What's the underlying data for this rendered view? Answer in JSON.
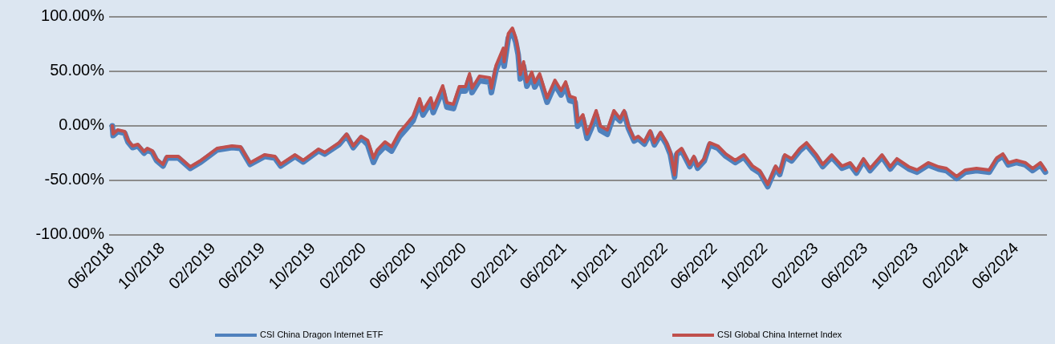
{
  "chart_data": {
    "type": "line",
    "x": [
      "2018-06-01",
      "2018-06-03",
      "2018-06-14",
      "2018-07-01",
      "2018-07-09",
      "2018-07-20",
      "2018-08-02",
      "2018-08-17",
      "2018-08-25",
      "2018-09-06",
      "2018-09-16",
      "2018-10-02",
      "2018-10-11",
      "2018-11-08",
      "2018-12-07",
      "2019-01-02",
      "2019-02-10",
      "2019-03-18",
      "2019-04-08",
      "2019-05-01",
      "2019-06-05",
      "2019-06-30",
      "2019-07-14",
      "2019-08-18",
      "2019-09-07",
      "2019-10-14",
      "2019-10-29",
      "2019-12-03",
      "2019-12-21",
      "2020-01-06",
      "2020-01-25",
      "2020-02-10",
      "2020-02-24",
      "2020-03-04",
      "2020-03-23",
      "2020-04-08",
      "2020-04-27",
      "2020-05-14",
      "2020-05-30",
      "2020-06-15",
      "2020-06-23",
      "2020-07-12",
      "2020-07-18",
      "2020-08-10",
      "2020-08-20",
      "2020-09-05",
      "2020-09-19",
      "2020-10-04",
      "2020-10-14",
      "2020-10-20",
      "2020-11-07",
      "2020-12-02",
      "2020-12-06",
      "2020-12-17",
      "2021-01-04",
      "2021-01-06",
      "2021-01-16",
      "2021-01-26",
      "2021-02-03",
      "2021-02-09",
      "2021-02-14",
      "2021-02-22",
      "2021-03-02",
      "2021-03-14",
      "2021-03-21",
      "2021-04-02",
      "2021-04-20",
      "2021-05-09",
      "2021-05-24",
      "2021-06-04",
      "2021-06-14",
      "2021-06-27",
      "2021-07-03",
      "2021-07-16",
      "2021-07-26",
      "2021-08-05",
      "2021-08-17",
      "2021-08-27",
      "2021-09-13",
      "2021-09-29",
      "2021-10-14",
      "2021-10-24",
      "2021-11-03",
      "2021-11-17",
      "2021-11-27",
      "2021-12-12",
      "2021-12-26",
      "2022-01-05",
      "2022-01-20",
      "2022-02-03",
      "2022-02-13",
      "2022-02-23",
      "2022-02-28",
      "2022-03-12",
      "2022-04-01",
      "2022-04-11",
      "2022-04-20",
      "2022-05-06",
      "2022-05-19",
      "2022-06-08",
      "2022-06-27",
      "2022-07-20",
      "2022-08-10",
      "2022-08-31",
      "2022-09-18",
      "2022-10-07",
      "2022-10-26",
      "2022-11-05",
      "2022-11-17",
      "2022-12-04",
      "2022-12-24",
      "2023-01-09",
      "2023-02-02",
      "2023-02-17",
      "2023-03-11",
      "2023-04-05",
      "2023-04-25",
      "2023-05-10",
      "2023-05-27",
      "2023-06-12",
      "2023-07-11",
      "2023-07-31",
      "2023-08-16",
      "2023-09-14",
      "2023-10-04",
      "2023-10-31",
      "2023-11-25",
      "2023-12-14",
      "2024-01-08",
      "2024-01-29",
      "2024-02-25",
      "2024-03-27",
      "2024-04-14",
      "2024-04-29",
      "2024-05-12",
      "2024-06-01",
      "2024-06-23",
      "2024-07-10",
      "2024-07-29",
      "2024-08-10"
    ],
    "series": [
      {
        "name": "CSI China Dragon Internet ETF",
        "color": "#4f81bd",
        "values": [
          0,
          -8.9,
          -5.2,
          -6.6,
          -14.7,
          -19.9,
          -18.4,
          -25.0,
          -22.1,
          -24.3,
          -31.6,
          -36.8,
          -29.4,
          -29.4,
          -39.0,
          -33.1,
          -22.1,
          -19.9,
          -20.6,
          -35.3,
          -28.0,
          -29.4,
          -36.8,
          -28.0,
          -33.1,
          -22.8,
          -25.8,
          -16.9,
          -8.9,
          -19.9,
          -11.1,
          -17.2,
          -33.4,
          -26.1,
          -18.7,
          -23.1,
          -9.9,
          -2.5,
          4.8,
          21.0,
          10.0,
          21.7,
          12.2,
          32.8,
          17.3,
          15.9,
          32.0,
          32.0,
          43.8,
          30.6,
          41.6,
          40.1,
          30.6,
          51.1,
          67.3,
          54.8,
          80.6,
          85.7,
          76.9,
          65.1,
          43.1,
          54.8,
          36.4,
          45.3,
          35.7,
          43.8,
          21.7,
          37.9,
          28.4,
          36.4,
          23.2,
          21.7,
          -0.3,
          6.3,
          -11.4,
          -2.5,
          10.0,
          -4.0,
          -7.7,
          10.0,
          4.6,
          12.0,
          -2.0,
          -13.8,
          -11.6,
          -16.7,
          -6.4,
          -17.4,
          -7.9,
          -16.7,
          -26.3,
          -46.9,
          -26.3,
          -22.6,
          -37.3,
          -29.9,
          -38.8,
          -32.1,
          -17.4,
          -20.4,
          -27.7,
          -33.6,
          -28.5,
          -38.8,
          -43.2,
          -55.7,
          -38.8,
          -44.6,
          -28.5,
          -32.1,
          -22.6,
          -17.4,
          -28.5,
          -37.3,
          -28.5,
          -38.8,
          -35.8,
          -43.2,
          -32.1,
          -41.0,
          -28.5,
          -39.5,
          -32.1,
          -39.5,
          -42.4,
          -35.8,
          -39.5,
          -41.0,
          -48.3,
          -42.4,
          -41.0,
          -42.4,
          -31.4,
          -27.7,
          -35.8,
          -33.6,
          -35.8,
          -41.0,
          -35.8,
          -42.4
        ]
      },
      {
        "name": "CSI Global China Internet Index",
        "color": "#c0504d",
        "values": [
          0,
          -7.4,
          -3.7,
          -5.1,
          -13.2,
          -18.4,
          -16.9,
          -23.5,
          -20.6,
          -22.8,
          -30.1,
          -35.3,
          -27.9,
          -27.9,
          -37.5,
          -31.6,
          -20.6,
          -18.4,
          -19.1,
          -33.8,
          -26.5,
          -27.9,
          -35.3,
          -26.5,
          -31.6,
          -21.3,
          -24.3,
          -15.4,
          -7.4,
          -18.4,
          -9.6,
          -13.2,
          -29.4,
          -22.1,
          -14.7,
          -19.1,
          -5.9,
          1.5,
          8.8,
          25.0,
          14.0,
          25.7,
          16.2,
          36.8,
          21.3,
          19.9,
          36.0,
          36.0,
          47.8,
          34.6,
          45.6,
          44.1,
          34.6,
          55.1,
          71.3,
          58.8,
          84.6,
          89.7,
          80.9,
          69.1,
          47.1,
          58.8,
          40.4,
          49.3,
          39.7,
          47.8,
          25.7,
          41.9,
          32.4,
          40.4,
          27.2,
          25.7,
          3.7,
          10.3,
          -7.4,
          1.5,
          14.0,
          0,
          -3.7,
          14.0,
          6.6,
          14.0,
          0,
          -11.8,
          -9.6,
          -14.7,
          -4.4,
          -15.4,
          -5.9,
          -14.7,
          -24.3,
          -44.9,
          -24.3,
          -20.6,
          -35.3,
          -27.9,
          -36.8,
          -30.1,
          -15.4,
          -18.4,
          -25.7,
          -31.6,
          -26.5,
          -36.8,
          -41.2,
          -53.7,
          -36.8,
          -42.6,
          -26.5,
          -30.1,
          -20.6,
          -15.4,
          -26.5,
          -35.3,
          -26.5,
          -36.8,
          -33.8,
          -41.2,
          -30.1,
          -39.0,
          -26.5,
          -37.5,
          -30.1,
          -37.5,
          -40.4,
          -33.8,
          -37.5,
          -39.0,
          -46.3,
          -40.4,
          -39.0,
          -40.4,
          -29.4,
          -25.7,
          -33.8,
          -31.6,
          -33.8,
          -39.0,
          -33.8,
          -40.4
        ]
      }
    ],
    "xlim": [
      "2018-06-01",
      "2024-08-10"
    ],
    "xticks": [
      {
        "value": "2018-06-01",
        "label": "06/2018"
      },
      {
        "value": "2018-10-01",
        "label": "10/2018"
      },
      {
        "value": "2019-02-01",
        "label": "02/2019"
      },
      {
        "value": "2019-06-01",
        "label": "06/2019"
      },
      {
        "value": "2019-10-01",
        "label": "10/2019"
      },
      {
        "value": "2020-02-01",
        "label": "02/2020"
      },
      {
        "value": "2020-06-01",
        "label": "06/2020"
      },
      {
        "value": "2020-10-01",
        "label": "10/2020"
      },
      {
        "value": "2021-02-01",
        "label": "02/2021"
      },
      {
        "value": "2021-06-01",
        "label": "06/2021"
      },
      {
        "value": "2021-10-01",
        "label": "10/2021"
      },
      {
        "value": "2022-02-01",
        "label": "02/2022"
      },
      {
        "value": "2022-06-01",
        "label": "06/2022"
      },
      {
        "value": "2022-10-01",
        "label": "10/2022"
      },
      {
        "value": "2023-02-01",
        "label": "02/2023"
      },
      {
        "value": "2023-06-01",
        "label": "06/2023"
      },
      {
        "value": "2023-10-01",
        "label": "10/2023"
      },
      {
        "value": "2024-02-01",
        "label": "02/2024"
      },
      {
        "value": "2024-06-01",
        "label": "06/2024"
      }
    ],
    "ylim": [
      -100,
      100
    ],
    "yticks": [
      {
        "value": -100,
        "label": "-100.00%"
      },
      {
        "value": -50,
        "label": "-50.00%"
      },
      {
        "value": 0,
        "label": "0.00%"
      },
      {
        "value": 50,
        "label": "50.00%"
      },
      {
        "value": 100,
        "label": "100.00%"
      }
    ],
    "grid": "y",
    "legend": "bottom",
    "marker": "none",
    "line_style": "solid"
  }
}
